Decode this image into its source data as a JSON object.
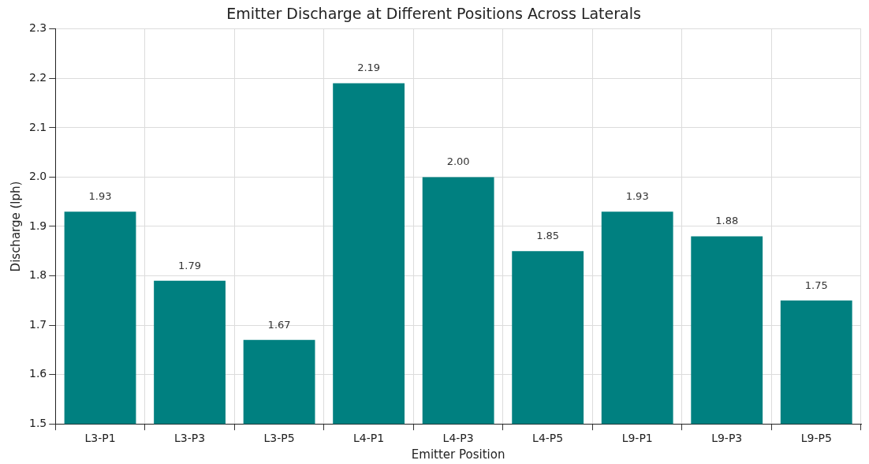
{
  "chart_data": {
    "type": "bar",
    "title": "Emitter Discharge at Different Positions Across Laterals",
    "xlabel": "Emitter Position",
    "ylabel": "Discharge (lph)",
    "categories": [
      "L3-P1",
      "L3-P3",
      "L3-P5",
      "L4-P1",
      "L4-P3",
      "L4-P5",
      "L9-P1",
      "L9-P3",
      "L9-P5"
    ],
    "values": [
      1.93,
      1.79,
      1.67,
      2.19,
      2.0,
      1.85,
      1.93,
      1.88,
      1.75
    ],
    "value_labels": [
      "1.93",
      "1.79",
      "1.67",
      "2.19",
      "2.00",
      "1.85",
      "1.93",
      "1.88",
      "1.75"
    ],
    "color": "#008080",
    "ylim": [
      1.5,
      2.3
    ],
    "yticks": [
      1.5,
      1.6,
      1.7,
      1.8,
      1.9,
      {
        "value": 2,
        "label": "2.0"
      },
      2.1,
      2.2,
      2.3
    ],
    "grid": true,
    "legend": false
  }
}
